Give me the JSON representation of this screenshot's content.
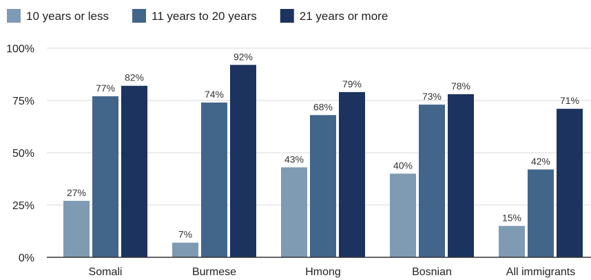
{
  "chart_data": {
    "type": "bar",
    "categories": [
      "Somali",
      "Burmese",
      "Hmong",
      "Bosnian",
      "All immigrants"
    ],
    "series": [
      {
        "name": "10 years or less",
        "color": "#7f9ab3",
        "values": [
          27,
          7,
          43,
          40,
          15
        ],
        "labels": [
          "27%",
          "7%",
          "43%",
          "40%",
          "15%"
        ]
      },
      {
        "name": "11 years to 20 years",
        "color": "#42658a",
        "values": [
          77,
          74,
          68,
          73,
          42
        ],
        "labels": [
          "77%",
          "74%",
          "68%",
          "73%",
          "42%"
        ]
      },
      {
        "name": "21 years or more",
        "color": "#1b335e",
        "values": [
          82,
          92,
          79,
          78,
          71
        ],
        "labels": [
          "82%",
          "92%",
          "79%",
          "78%",
          "71%"
        ]
      }
    ],
    "yticks": [
      0,
      25,
      50,
      75,
      100
    ],
    "ytick_labels": [
      "0%",
      "25%",
      "50%",
      "75%",
      "100%"
    ],
    "ylim": [
      0,
      100
    ],
    "grid": true,
    "legend_position": "top-left"
  }
}
